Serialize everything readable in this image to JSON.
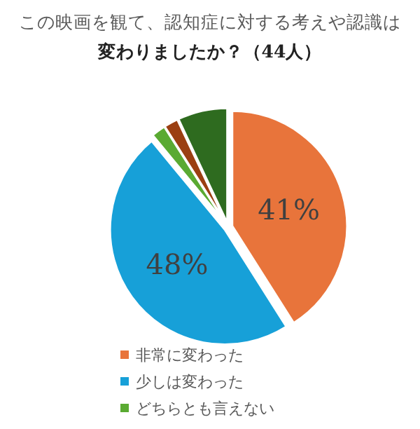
{
  "chart_data": {
    "type": "pie",
    "title": "この映画を観て、認知症に対する考えや認識は変わりましたか？（44人）",
    "categories": [
      "非常に変わった",
      "少しは変わった",
      "どちらとも言えない",
      null,
      null
    ],
    "values": [
      41,
      48,
      2,
      2,
      7
    ],
    "colors": [
      "#e8743b",
      "#17a0d8",
      "#5aaa32",
      "#9b3f12",
      "#2e6b1f"
    ],
    "value_labels": [
      "41%",
      "48%",
      null,
      null,
      null
    ],
    "legend": "bottom"
  }
}
